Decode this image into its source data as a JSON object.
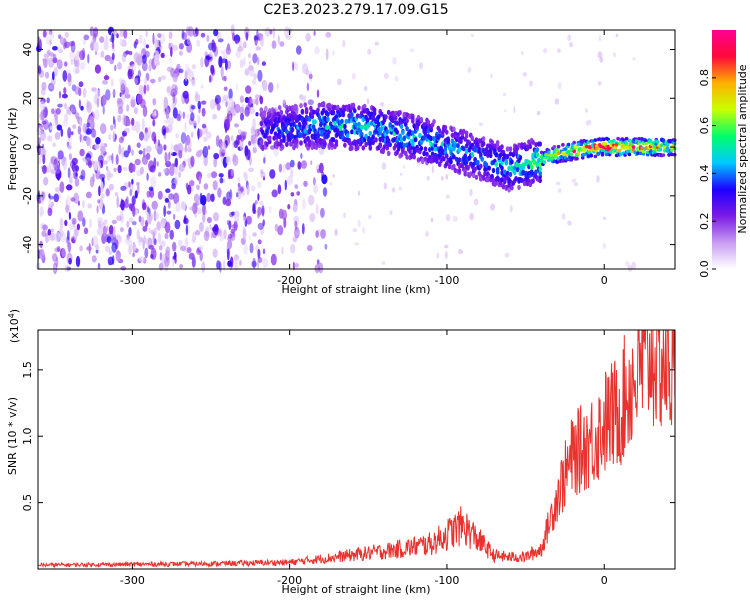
{
  "figure": {
    "title": "C2E3.2023.279.17.09.G15"
  },
  "chart_data": [
    {
      "type": "heatmap",
      "xlabel": "Height of straight line (km)",
      "ylabel": "Frequency (Hz)",
      "xlim": [
        -360,
        45
      ],
      "ylim": [
        -50,
        48
      ],
      "xticks": [
        "-300",
        "-200",
        "-100",
        "0"
      ],
      "yticks": [
        "-40",
        "-20",
        "0",
        "20",
        "40"
      ],
      "xtick_values": [
        -300,
        -200,
        -100,
        0
      ],
      "ytick_values": [
        -40,
        -20,
        0,
        20,
        40
      ],
      "colorbar": {
        "label": "Normalized spectral amplitude",
        "range": [
          0,
          1
        ],
        "ticks": [
          "0.0",
          "0.2",
          "0.4",
          "0.6",
          "0.8"
        ],
        "tick_values": [
          0.0,
          0.2,
          0.4,
          0.6,
          0.8
        ],
        "colormap": [
          "#ffffff",
          "#c79cf2",
          "#7b1ae6",
          "#1e00ff",
          "#00c8ff",
          "#00ff6a",
          "#c8ff00",
          "#ffb000",
          "#ff0a3a",
          "#ff0090"
        ]
      },
      "signal_track": {
        "height_km": [
          -215,
          -180,
          -150,
          -120,
          -100,
          -80,
          -60,
          -45,
          -30,
          -15,
          0,
          20,
          45
        ],
        "frequency_hz": [
          7,
          9,
          8,
          4,
          0,
          -4,
          -9,
          -6,
          -3,
          -1,
          0,
          0,
          0
        ],
        "peak_amplitude": [
          0.25,
          0.4,
          0.45,
          0.4,
          0.4,
          0.35,
          0.4,
          0.5,
          0.7,
          0.85,
          0.95,
          0.9,
          0.6
        ]
      }
    },
    {
      "type": "line",
      "xlabel": "Height of straight line (km)",
      "ylabel": "SNR (10 * v/v)",
      "y_multiplier": "(x10",
      "y_multiplier_exp": "4",
      "xlim": [
        -360,
        45
      ],
      "ylim": [
        0,
        18000
      ],
      "xticks": [
        "-300",
        "-200",
        "-100",
        "0"
      ],
      "yticks": [
        "0.5",
        "1.0",
        "1.5"
      ],
      "xtick_values": [
        -300,
        -200,
        -100,
        0
      ],
      "ytick_values": [
        5000,
        10000,
        15000
      ],
      "color": "#e8322e",
      "series": [
        {
          "x": [
            -360,
            -300,
            -250,
            -200,
            -170,
            -150,
            -130,
            -110,
            -100,
            -90,
            -80,
            -70,
            -60,
            -50,
            -40,
            -35,
            -30,
            -25,
            -20,
            -15,
            -10,
            -5,
            0,
            5,
            10,
            15,
            20,
            25,
            30,
            35,
            40,
            45
          ],
          "y": [
            300,
            350,
            400,
            500,
            900,
            1200,
            1500,
            1900,
            2600,
            3300,
            2200,
            1000,
            900,
            900,
            1500,
            3500,
            5500,
            7000,
            8500,
            9000,
            9500,
            10000,
            11000,
            11500,
            12000,
            13500,
            14500,
            15500,
            16500,
            16000,
            15500,
            15000
          ]
        }
      ]
    }
  ]
}
